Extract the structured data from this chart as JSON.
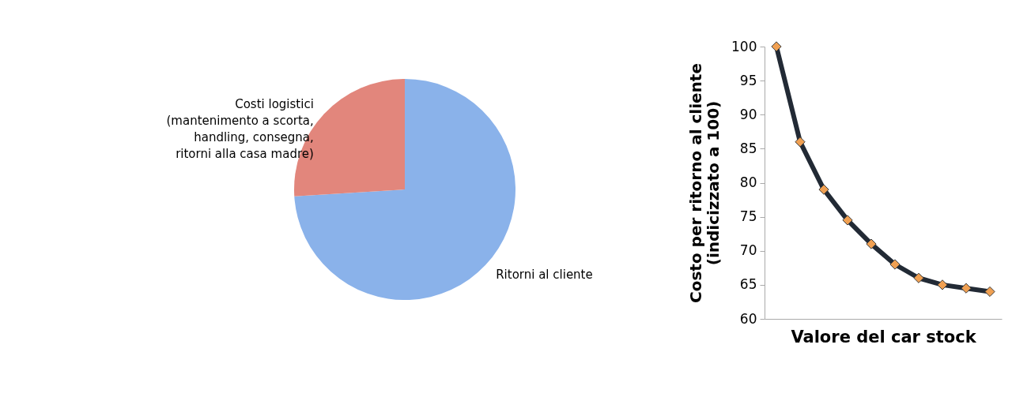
{
  "chart_data": [
    {
      "type": "pie",
      "categories": [
        "Ritorni al cliente",
        "Costi logistici (mantenimento a scorta, handling, consegna, ritorni alla casa madre)"
      ],
      "values": [
        74,
        26
      ],
      "colors": [
        "#8ab2ea",
        "#e2867c"
      ]
    },
    {
      "type": "line",
      "categories": [
        null,
        null,
        null,
        null,
        null,
        null,
        null,
        null,
        null,
        null
      ],
      "series": [
        {
          "color": "#222a35",
          "values": [
            100,
            86,
            79,
            74.5,
            71,
            68,
            66,
            65,
            64.5,
            64
          ]
        }
      ],
      "marker": "diamond",
      "ylim": [
        60,
        100
      ],
      "yticks": [
        60,
        65,
        70,
        75,
        80,
        85,
        90,
        95,
        100
      ],
      "xlabel": "Valore del car stock",
      "ylabel": "Costo per ritorno al cliente (indicizzato a 100)",
      "tick_labels": "y",
      "grid": false
    }
  ]
}
